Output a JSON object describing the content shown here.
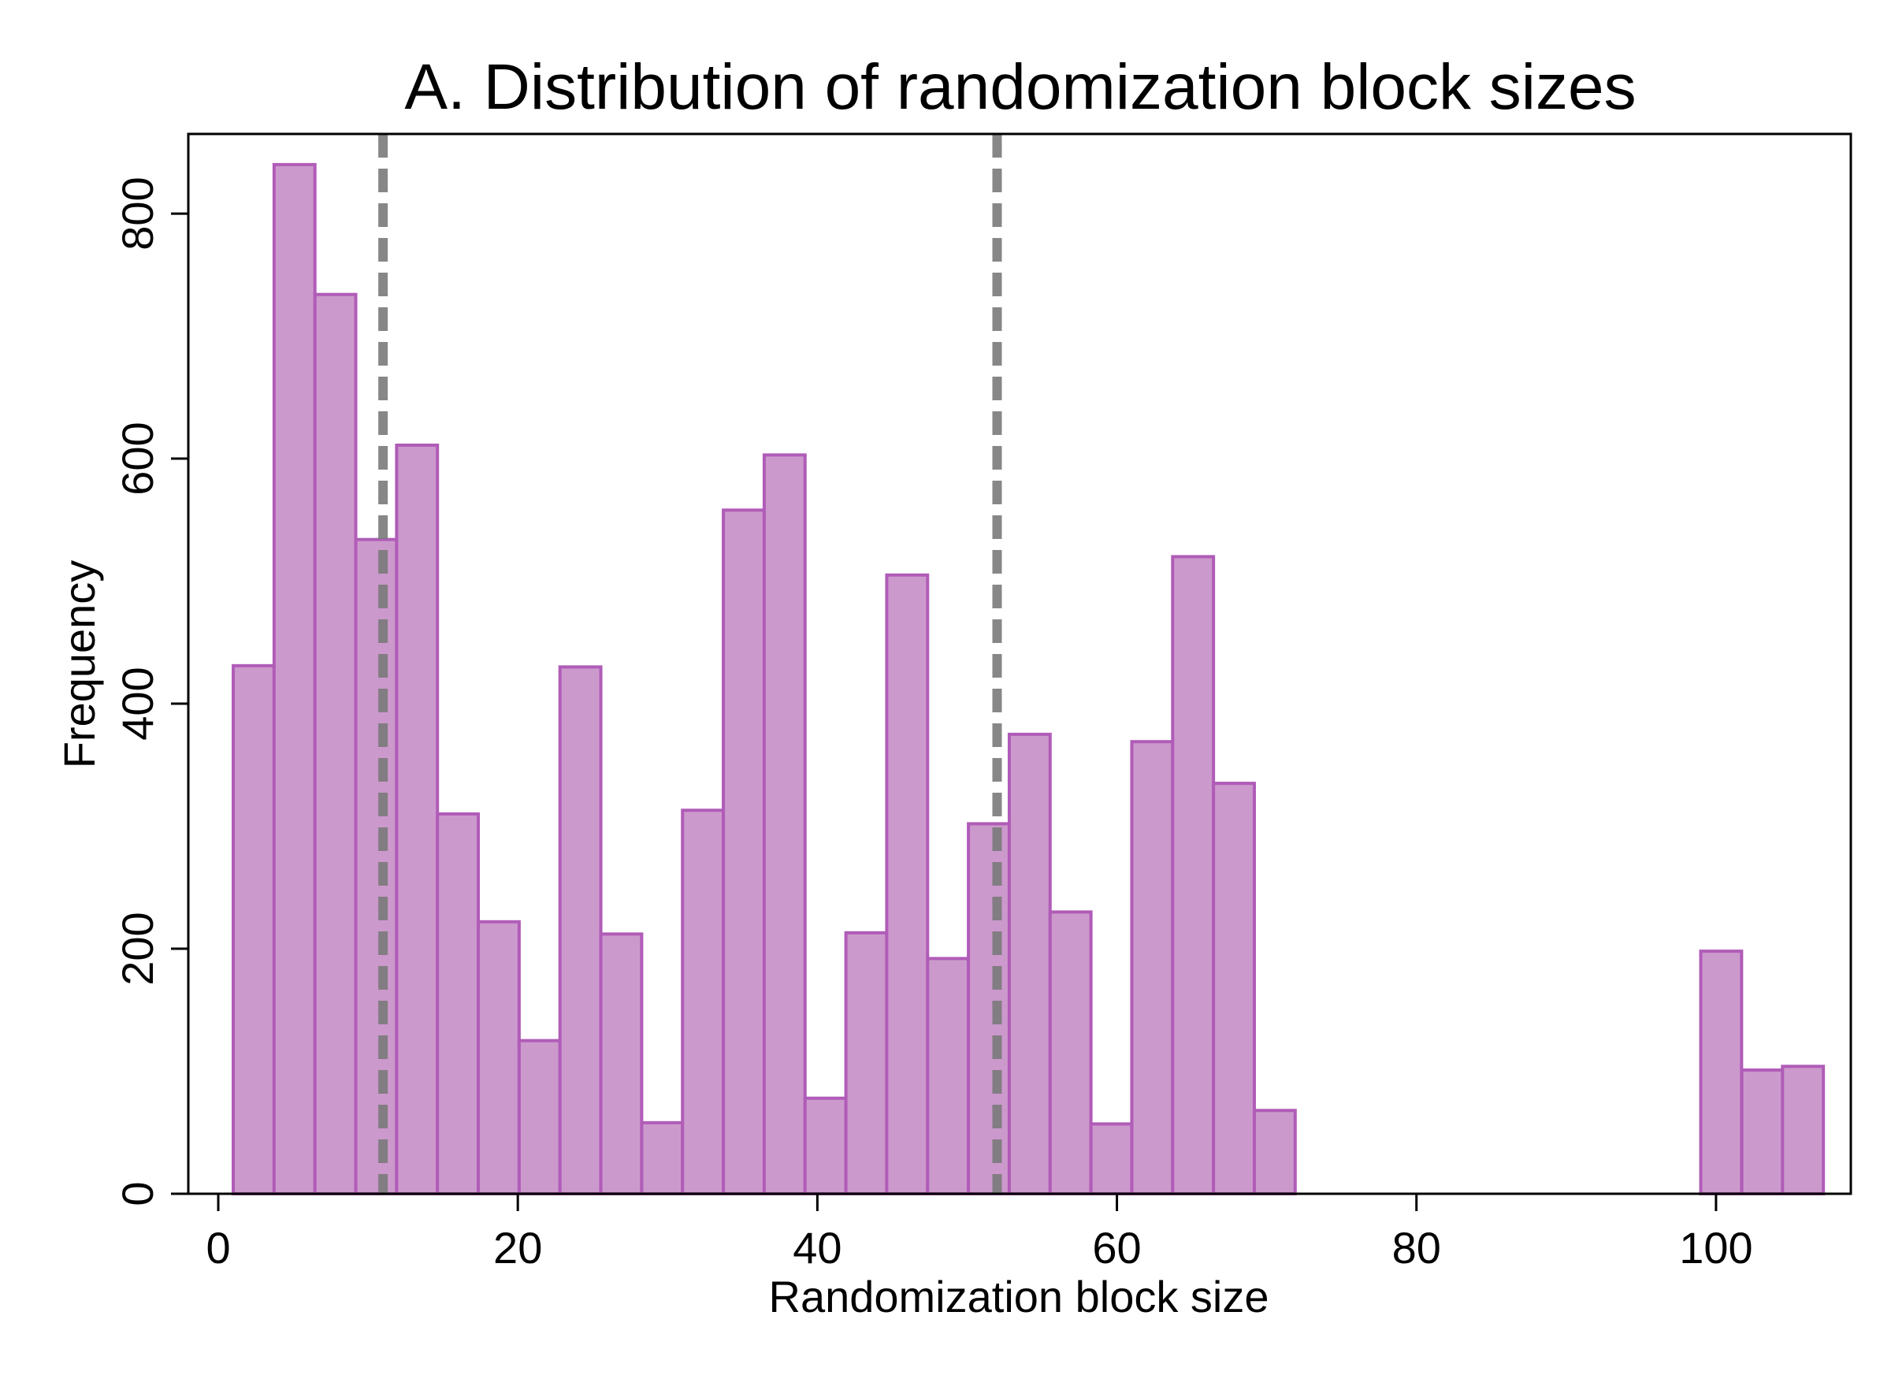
{
  "chart_data": {
    "type": "bar",
    "title": "A. Distribution of randomization block sizes",
    "xlabel": "Randomization block size",
    "ylabel": "Frequency",
    "xlim": [
      -2,
      109
    ],
    "ylim": [
      0,
      865
    ],
    "x_ticks": [
      0,
      20,
      40,
      60,
      80,
      100
    ],
    "y_ticks": [
      0,
      200,
      400,
      600,
      800
    ],
    "bin_width": 2.727,
    "bins": [
      {
        "start": 1.0,
        "value": 431
      },
      {
        "start": 3.727,
        "value": 840
      },
      {
        "start": 6.454,
        "value": 734
      },
      {
        "start": 9.181,
        "value": 534
      },
      {
        "start": 11.908,
        "value": 611
      },
      {
        "start": 14.635,
        "value": 310
      },
      {
        "start": 17.362,
        "value": 222
      },
      {
        "start": 20.089,
        "value": 125
      },
      {
        "start": 22.816,
        "value": 430
      },
      {
        "start": 25.543,
        "value": 212
      },
      {
        "start": 28.27,
        "value": 58
      },
      {
        "start": 30.997,
        "value": 313
      },
      {
        "start": 33.724,
        "value": 558
      },
      {
        "start": 36.451,
        "value": 603
      },
      {
        "start": 39.178,
        "value": 78
      },
      {
        "start": 41.905,
        "value": 213
      },
      {
        "start": 44.632,
        "value": 505
      },
      {
        "start": 47.359,
        "value": 192
      },
      {
        "start": 50.086,
        "value": 302
      },
      {
        "start": 52.813,
        "value": 375
      },
      {
        "start": 55.54,
        "value": 230
      },
      {
        "start": 58.267,
        "value": 57
      },
      {
        "start": 60.994,
        "value": 369
      },
      {
        "start": 63.721,
        "value": 520
      },
      {
        "start": 66.448,
        "value": 335
      },
      {
        "start": 69.175,
        "value": 68
      },
      {
        "start": 98.98,
        "value": 198
      },
      {
        "start": 101.72,
        "value": 101
      },
      {
        "start": 104.44,
        "value": 104
      }
    ],
    "reference_lines_x": [
      11.0,
      52.0
    ],
    "grid": false,
    "colors": {
      "bar_fill": "#cc99cc",
      "bar_stroke": "#b05cb8",
      "reference_line": "#7a7a7a"
    }
  }
}
